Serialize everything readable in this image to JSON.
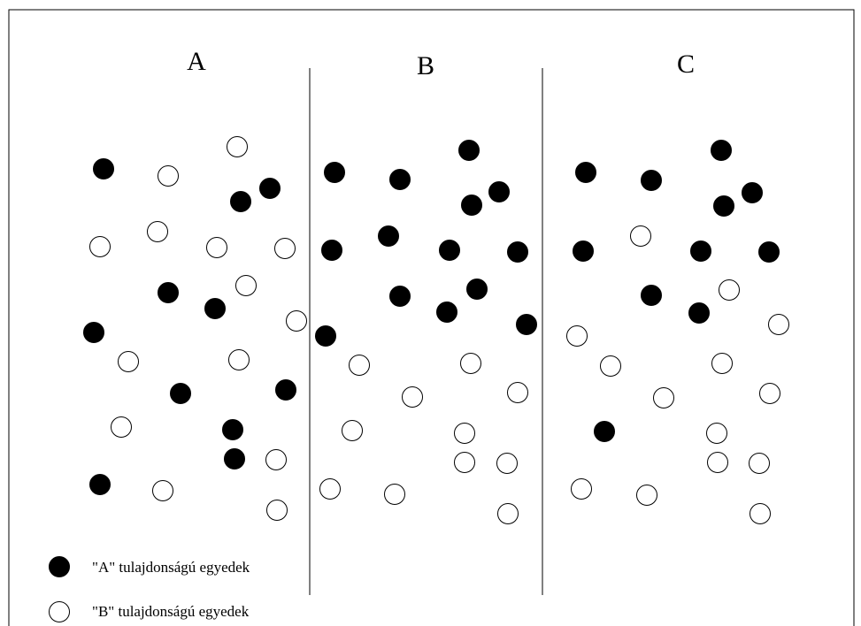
{
  "colors": {
    "type_a_fill": "#000000",
    "type_b_fill": "#ffffff",
    "stroke": "#000000"
  },
  "panels": [
    {
      "id": "A",
      "label": "A"
    },
    {
      "id": "B",
      "label": "B"
    },
    {
      "id": "C",
      "label": "C"
    }
  ],
  "legend": {
    "type_a_label": "\"A\" tulajdonságú egyedek",
    "type_b_label": "\"B\" tulajdonságú egyedek"
  }
}
